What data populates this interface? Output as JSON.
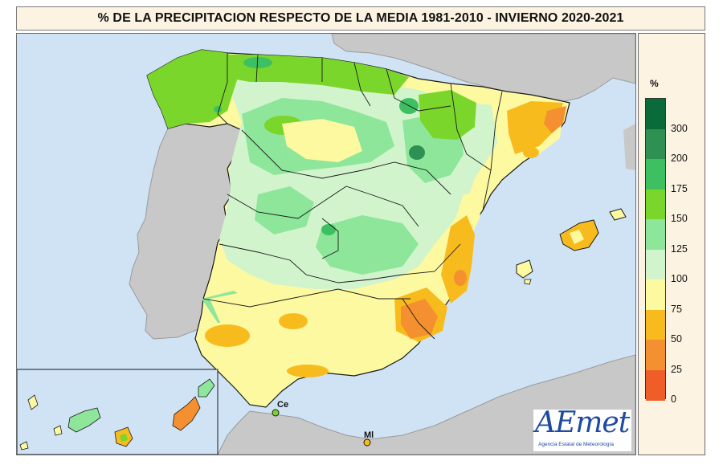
{
  "title": "% DE LA PRECIPITACION RESPECTO DE LA MEDIA  1981-2010 - INVIERNO 2020-2021",
  "legend": {
    "unit": "%",
    "classes": [
      {
        "label": "300",
        "color": "#0a6b3a"
      },
      {
        "label": "200",
        "color": "#2e9153"
      },
      {
        "label": "175",
        "color": "#3ec062"
      },
      {
        "label": "150",
        "color": "#7bd62c"
      },
      {
        "label": "125",
        "color": "#8de69a"
      },
      {
        "label": "100",
        "color": "#d2f4cc"
      },
      {
        "label": "75",
        "color": "#fdf9a0"
      },
      {
        "label": "50",
        "color": "#f7bb1e"
      },
      {
        "label": "25",
        "color": "#f4902f"
      },
      {
        "label": "0",
        "color": "#ef5e28"
      }
    ],
    "bottom_color": "#ef5e28"
  },
  "places": {
    "ceuta": "Ce",
    "melilla": "Ml"
  },
  "logo": {
    "text": "AEmet",
    "subtitle": "Agencia Estatal de Meteorología"
  },
  "colors": {
    "sea": "#cfe3f5",
    "foreign_land": "#c8c8c8",
    "border": "#1a1a1a"
  }
}
